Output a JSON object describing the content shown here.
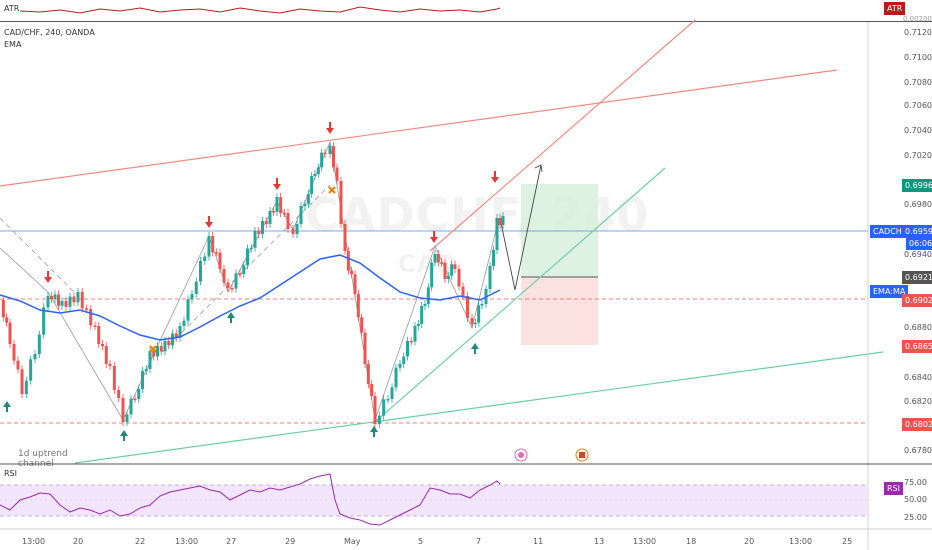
{
  "atr": {
    "label": "ATR",
    "badge": "ATR",
    "axis_value": "0.00200"
  },
  "header": {
    "symbol_line": "CAD/CHF, 240, OANDA",
    "indicator": "EMA"
  },
  "watermark": {
    "main": "CADCHF, 240",
    "sub": "CAD"
  },
  "channel_label": {
    "line1": "1d uptrend",
    "line2": "channel"
  },
  "price_axis": [
    "0.71200",
    "0.71000",
    "0.70800",
    "0.70600",
    "0.70400",
    "0.70200",
    "0.69800",
    "0.69400",
    "0.68800",
    "0.68400",
    "0.68200",
    "0.67800"
  ],
  "price_tags": {
    "target": {
      "value": "0.69962",
      "color": "#089981"
    },
    "symbol_name": "CADCHF",
    "current": {
      "value": "0.69590",
      "color": "#2962ff"
    },
    "countdown": "06:06",
    "entry": {
      "value": "0.69213",
      "color": "#555555"
    },
    "ema_name": "EMA:MA",
    "ema_value": {
      "value": "0.69026",
      "color": "#ef5350"
    },
    "stop": {
      "value": "0.68659",
      "color": "#ef5350"
    },
    "support": {
      "value": "0.68029",
      "color": "#ef5350"
    }
  },
  "rsi": {
    "label": "RSI",
    "badge": "RSI",
    "axis": [
      "75.00",
      "50.00",
      "25.00"
    ]
  },
  "time_axis": [
    "13:00",
    "20",
    "22",
    "13:00",
    "27",
    "29",
    "May",
    "5",
    "7",
    "11",
    "13",
    "13:00",
    "18",
    "20",
    "13:00",
    "25"
  ],
  "colors": {
    "up_candle": "#26a69a",
    "down_candle": "#ef5350",
    "ema": "#2962ff",
    "resistance": "#f28b82",
    "support_trend": "#6ccfa6",
    "rsi_line": "#9c27b0",
    "rsi_band": "#f3e5fb"
  },
  "icons": [
    "sell-arrow-icon",
    "buy-arrow-icon",
    "cross-marker-icon",
    "news-event-icon",
    "canada-flag-icon"
  ]
}
